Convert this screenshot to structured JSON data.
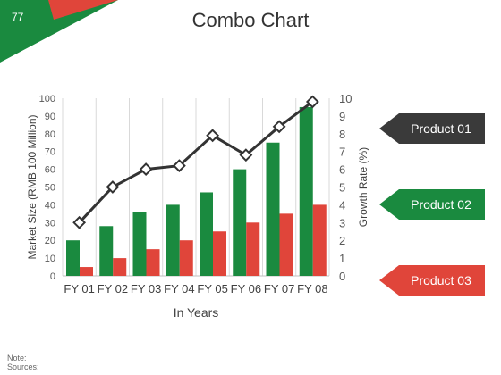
{
  "slide": {
    "number": "77",
    "title": "Combo Chart"
  },
  "colors": {
    "green": "#1a8a3f",
    "red": "#e0453a",
    "dark": "#3a3a3a",
    "line": "#333333"
  },
  "legend_tags": [
    {
      "label": "Product 01",
      "color": "#3a3a3a"
    },
    {
      "label": "Product 02",
      "color": "#1a8a3f"
    },
    {
      "label": "Product 03",
      "color": "#e0453a"
    }
  ],
  "footer": {
    "note": "Note:",
    "sources": "Sources:"
  },
  "chart_data": {
    "type": "bar",
    "categories": [
      "FY 01",
      "FY 02",
      "FY 03",
      "FY 04",
      "FY 05",
      "FY 06",
      "FY 07",
      "FY 08"
    ],
    "series": [
      {
        "kind": "bar",
        "axis": "left",
        "color": "#1a8a3f",
        "values": [
          20,
          28,
          36,
          40,
          47,
          60,
          75,
          95
        ]
      },
      {
        "kind": "bar",
        "axis": "left",
        "color": "#e0453a",
        "values": [
          5,
          10,
          15,
          20,
          25,
          30,
          35,
          40
        ]
      },
      {
        "kind": "line",
        "axis": "right",
        "color": "#333333",
        "marker": "diamond",
        "values": [
          3,
          5,
          6,
          6.2,
          7.9,
          6.8,
          8.4,
          9.8
        ]
      }
    ],
    "xlabel": "In Years",
    "ylabel": "Market Size (RMB 100 Million)",
    "y2label": "Growth Rate (%)",
    "ylim": [
      0,
      100
    ],
    "y2lim": [
      0,
      10
    ],
    "yticks": [
      "0",
      "10",
      "20",
      "30",
      "40",
      "50",
      "60",
      "70",
      "80",
      "90",
      "100"
    ],
    "y2ticks": [
      "0",
      "1",
      "2",
      "3",
      "4",
      "5",
      "6",
      "7",
      "8",
      "9",
      "10"
    ],
    "grid": "vertical"
  }
}
